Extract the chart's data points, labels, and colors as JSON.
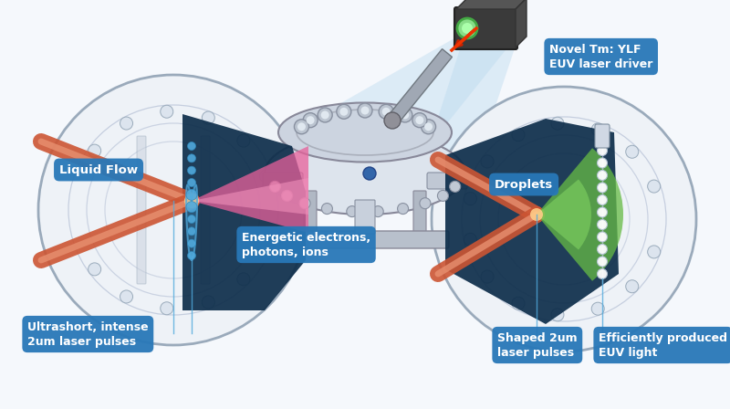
{
  "bg_color": "#f5f8fc",
  "label_bg_color": "#2878b8",
  "label_text_color": "#ffffff",
  "dark_teal": "#0d2d4a",
  "light_blue_fill": "#b8d8ee",
  "laser_orange": "#cc5533",
  "laser_orange_light": "#e89070",
  "pink_beam": "#e8609a",
  "cyan_accent": "#50aadd",
  "green_cone": "#66bb44",
  "gray_box": "#4a4a4a",
  "gray_mid": "#888899",
  "gray_light": "#c0c8d4",
  "chamber_bg": "#d8e4f0",
  "labels": {
    "novel": "Novel Tm: YLF\nEUV laser driver",
    "liquid_flow": "Liquid Flow",
    "energetic": "Energetic electrons,\nphotons, ions",
    "ultrashort": "Ultrashort, intense\n2um laser pulses",
    "droplets": "Droplets",
    "shaped": "Shaped 2um\nlaser pulses",
    "euv": "Efficiently produced\nEUV light"
  },
  "fig_width": 8.0,
  "fig_height": 4.48
}
